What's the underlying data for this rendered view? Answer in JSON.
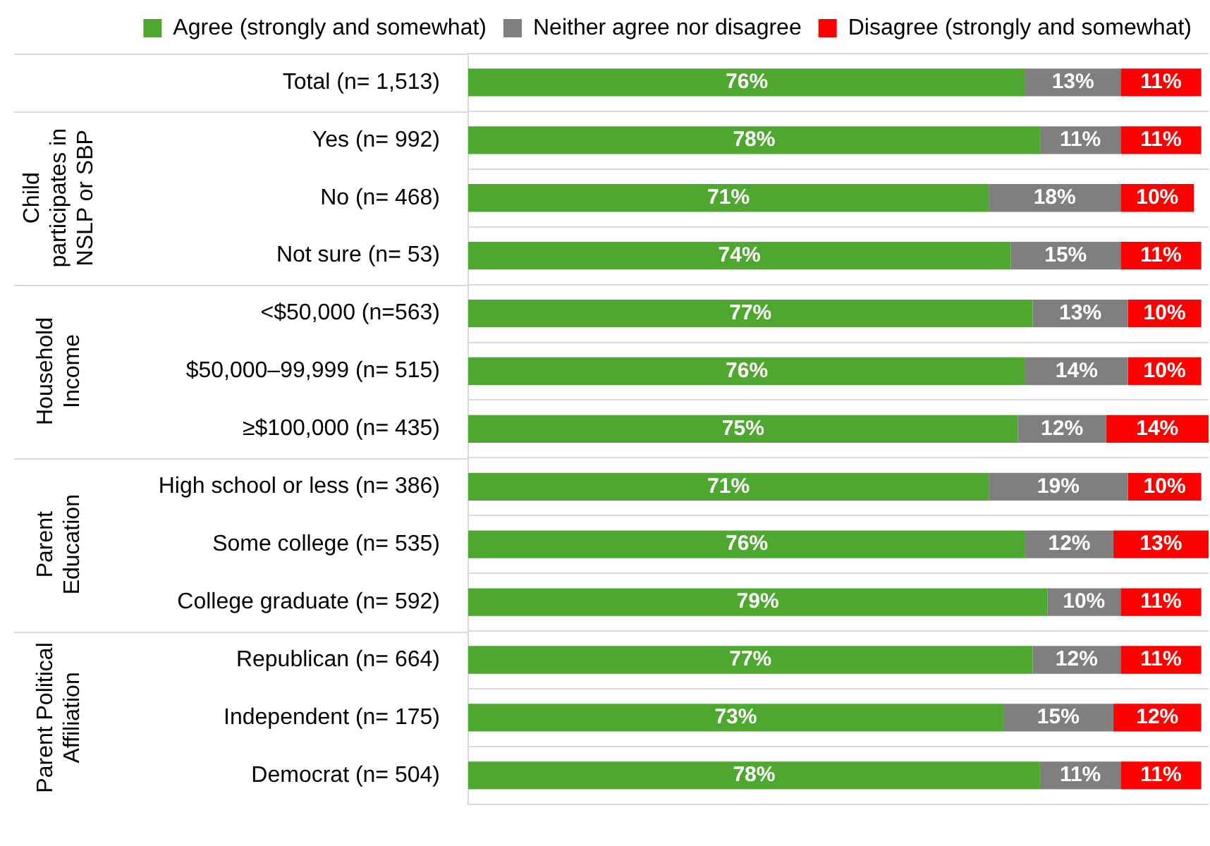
{
  "chart_data": {
    "type": "bar",
    "orientation": "horizontal",
    "stacked": true,
    "categories": [
      "Total (n= 1,513)",
      "Yes (n= 992)",
      "No (n= 468)",
      "Not sure (n= 53)",
      "<$50,000 (n=563)",
      "$50,000–99,999 (n= 515)",
      "≥$100,000 (n= 435)",
      "High school or less (n= 386)",
      "Some college (n= 535)",
      "College graduate (n= 592)",
      "Republican (n= 664)",
      "Independent (n= 175)",
      "Democrat (n= 504)"
    ],
    "series": [
      {
        "name": "Agree (strongly and somewhat)",
        "color": "#4ea72e",
        "values": [
          76,
          78,
          71,
          74,
          77,
          76,
          75,
          71,
          76,
          79,
          77,
          73,
          78
        ],
        "value_labels": [
          "76%",
          "78%",
          "71%",
          "74%",
          "77%",
          "76%",
          "75%",
          "71%",
          "76%",
          "79%",
          "77%",
          "73%",
          "78%"
        ]
      },
      {
        "name": "Neither agree nor disagree",
        "color": "#7f7f7f",
        "values": [
          13,
          11,
          18,
          15,
          13,
          14,
          12,
          19,
          12,
          10,
          12,
          15,
          11
        ],
        "value_labels": [
          "13%",
          "11%",
          "18%",
          "15%",
          "13%",
          "14%",
          "12%",
          "19%",
          "12%",
          "10%",
          "12%",
          "15%",
          "11%"
        ]
      },
      {
        "name": "Disagree (strongly and somewhat)",
        "color": "#ff0000",
        "values": [
          11,
          11,
          10,
          11,
          10,
          10,
          14,
          10,
          13,
          11,
          11,
          12,
          11
        ],
        "value_labels": [
          "11%",
          "11%",
          "10%",
          "11%",
          "10%",
          "10%",
          "14%",
          "10%",
          "13%",
          "11%",
          "11%",
          "12%",
          "11%"
        ]
      }
    ],
    "tick_labels": "y",
    "grid": "y",
    "legend": "top",
    "annotations": [
      "Child participates in NSLP or SBP",
      "Household Income",
      "Parent Education",
      "Parent Political Affiliation"
    ]
  }
}
